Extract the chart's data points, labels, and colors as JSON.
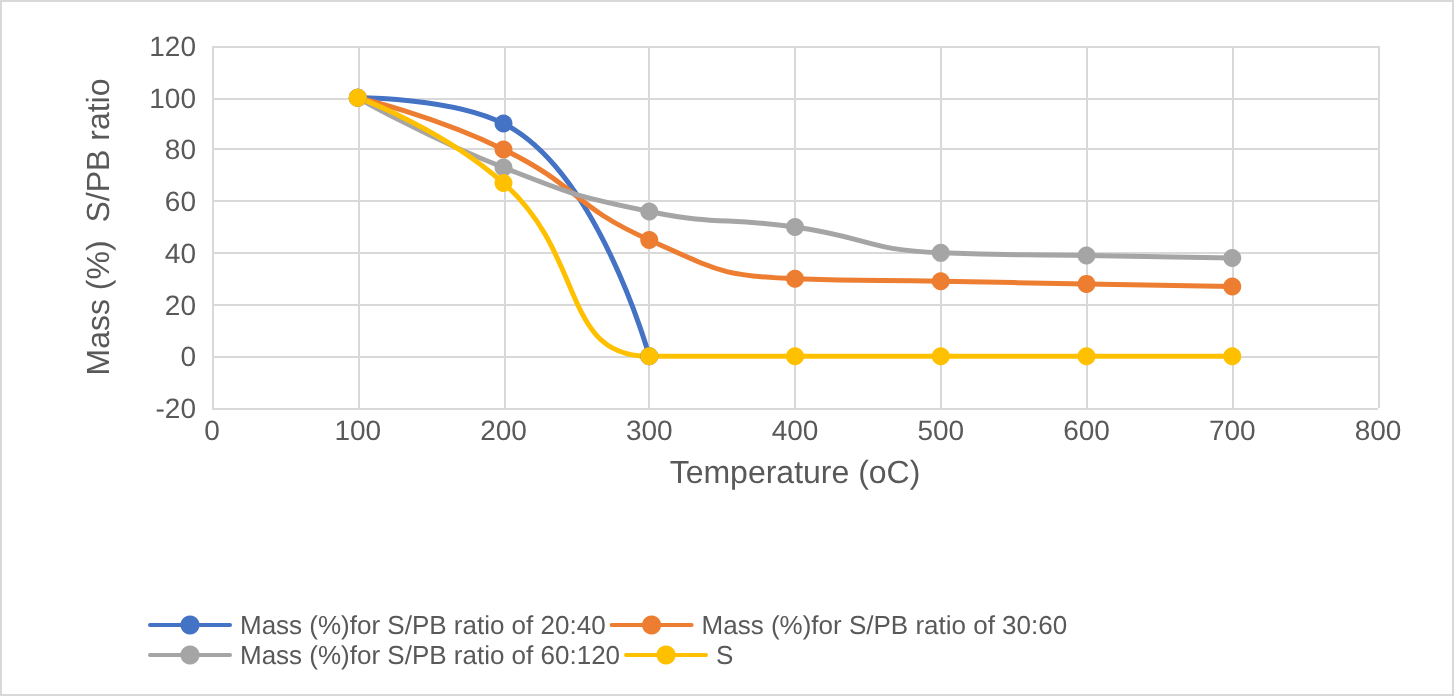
{
  "chart_data": {
    "type": "line",
    "xlabel": "Temperature (oC)",
    "ylabel": "Mass (%)  S/PB ratio",
    "x": [
      100,
      200,
      300,
      400,
      500,
      600,
      700
    ],
    "series": [
      {
        "name": "Mass (%)for S/PB ratio of 20:40",
        "color": "#4472c4",
        "values": [
          100,
          90,
          0,
          null,
          null,
          null,
          null
        ]
      },
      {
        "name": "Mass (%)for S/PB ratio of 30:60",
        "color": "#ed7d31",
        "values": [
          100,
          80,
          45,
          30,
          29,
          28,
          27
        ]
      },
      {
        "name": "Mass (%)for S/PB ratio of 60:120",
        "color": "#a5a5a5",
        "values": [
          100,
          73,
          56,
          50,
          40,
          39,
          38
        ]
      },
      {
        "name": "S",
        "color": "#ffc000",
        "values": [
          100,
          67,
          0,
          0,
          0,
          0,
          0
        ]
      }
    ],
    "xlim": [
      0,
      800
    ],
    "xticks": [
      0,
      100,
      200,
      300,
      400,
      500,
      600,
      700,
      800
    ],
    "ylim": [
      -20,
      120
    ],
    "yticks": [
      -20,
      0,
      20,
      40,
      60,
      80,
      100,
      120
    ],
    "grid": true,
    "legend": "bottom",
    "marker": "circle",
    "line_style": "solid"
  }
}
